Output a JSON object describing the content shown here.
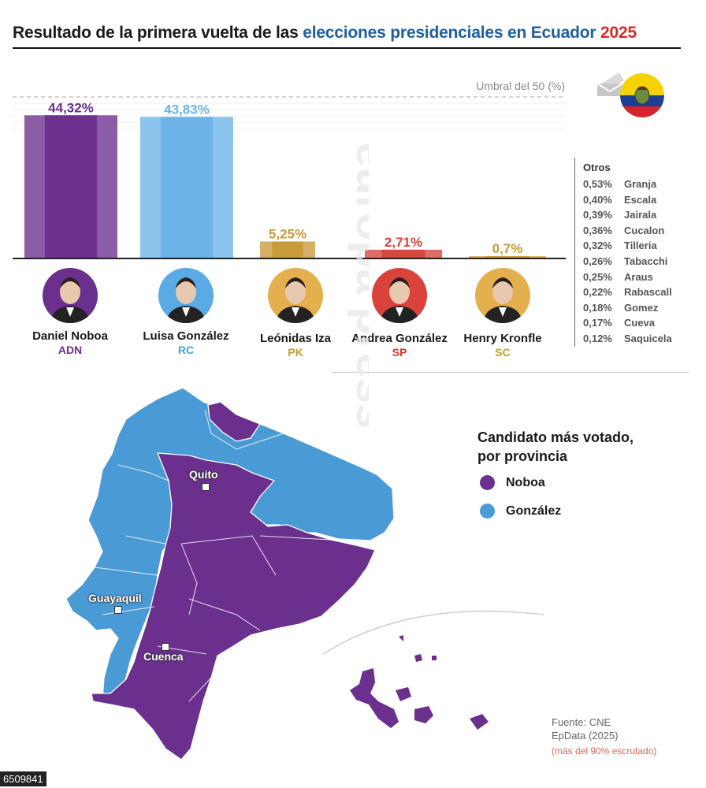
{
  "title": {
    "part1": "Resultado de la primera vuelta de las ",
    "part2": "elecciones presidenciales en Ecuador",
    "part3": "2025"
  },
  "chart_data": {
    "type": "bar",
    "categories": [
      "Daniel Noboa",
      "Luisa González",
      "Leónidas Iza",
      "Andrea González",
      "Henry Kronfle"
    ],
    "values": [
      44.32,
      43.83,
      5.25,
      2.71,
      0.7
    ],
    "value_labels": [
      "44,32%",
      "43,83%",
      "5,25%",
      "2,71%",
      "0,7%"
    ],
    "parties": [
      "ADN",
      "RC",
      "PK",
      "SP",
      "SC"
    ],
    "colors": [
      "#6b2f8e",
      "#6ab3e8",
      "#c79a3a",
      "#d9433b",
      "#c79a3a"
    ],
    "threshold_value": 50,
    "threshold_label": "Umbral del 50 (%)",
    "ylim": [
      0,
      50
    ],
    "grid": false
  },
  "candidates": [
    {
      "name": "Daniel Noboa",
      "party": "ADN",
      "color": "#6b2f8e",
      "bg": "#6b2f8e"
    },
    {
      "name": "Luisa González",
      "party": "RC",
      "color": "#4a9fd8",
      "bg": "#5aaae6"
    },
    {
      "name": "Leónidas Iza",
      "party": "PK",
      "color": "#c89b2c",
      "bg": "#e3b04d"
    },
    {
      "name": "Andrea González",
      "party": "SP",
      "color": "#d9362f",
      "bg": "#d9433b"
    },
    {
      "name": "Henry Kronfle",
      "party": "SC",
      "color": "#c89b2c",
      "bg": "#e3b04d"
    }
  ],
  "others": {
    "title": "Otros",
    "items": [
      {
        "pct": "0,53%",
        "name": "Granja"
      },
      {
        "pct": "0,40%",
        "name": "Escala"
      },
      {
        "pct": "0,39%",
        "name": "Jairala"
      },
      {
        "pct": "0,36%",
        "name": "Cucalon"
      },
      {
        "pct": "0,32%",
        "name": "Tilleria"
      },
      {
        "pct": "0,26%",
        "name": "Tabacchi"
      },
      {
        "pct": "0,25%",
        "name": "Araus"
      },
      {
        "pct": "0,22%",
        "name": "Rabascall"
      },
      {
        "pct": "0,18%",
        "name": "Gomez"
      },
      {
        "pct": "0,17%",
        "name": "Cueva"
      },
      {
        "pct": "0,12%",
        "name": "Saquicela"
      }
    ]
  },
  "map": {
    "legend_title_1": "Candidato más votado,",
    "legend_title_2": "por provincia",
    "legend": [
      {
        "label": "Noboa",
        "color": "#6b2f8e"
      },
      {
        "label": "González",
        "color": "#4a9ad6"
      }
    ],
    "cities": [
      "Quito",
      "Guayaquil",
      "Cuenca"
    ]
  },
  "source": {
    "line1": "Fuente: CNE",
    "line2": "EpData (2025)",
    "note": "(más del 90% escrutado)"
  },
  "watermark": "europa press",
  "photo_id": "6509841",
  "icons": [
    "ballot-icon",
    "ecuador-flag-icon"
  ]
}
